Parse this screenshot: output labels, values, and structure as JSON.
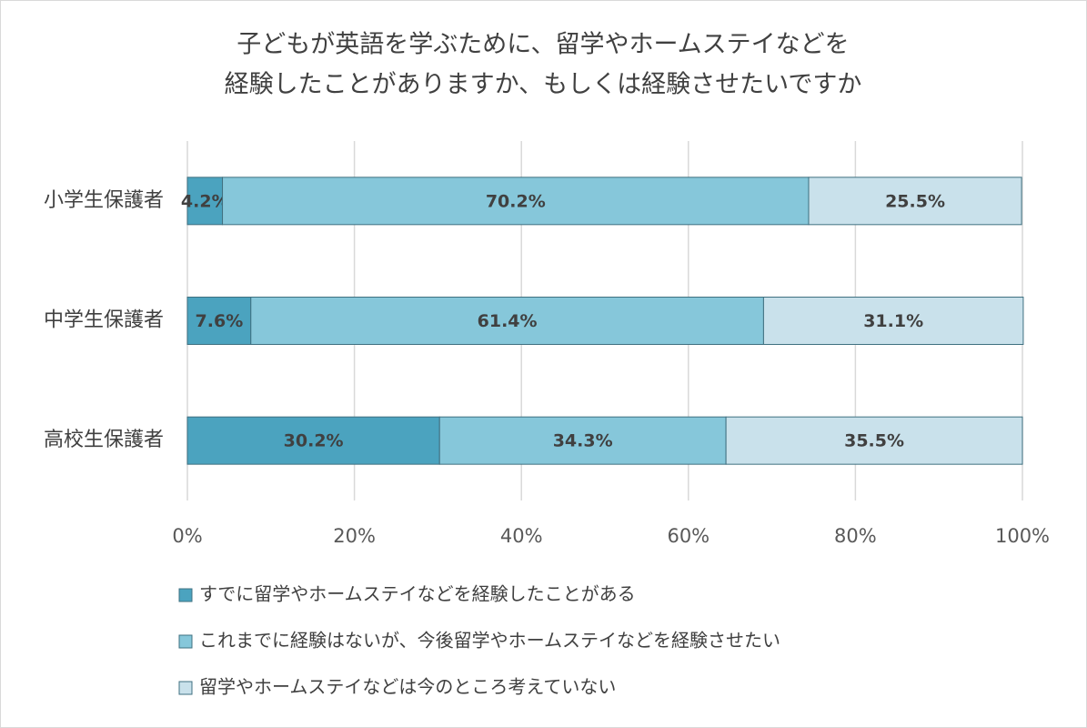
{
  "chart_data": {
    "type": "stacked_bar_horizontal",
    "title": [
      "子どもが英語を学ぶために、留学やホームステイなどを",
      "経験したことがありますか、もしくは経験させたいですか"
    ],
    "categories": [
      "小学生保護者",
      "中学生保護者",
      "高校生保護者"
    ],
    "series": [
      {
        "name": "すでに留学やホームステイなどを経験したことがある",
        "color": "#4ba3bf",
        "values": [
          4.2,
          7.6,
          30.2
        ],
        "value_labels": [
          "4.2%",
          "7.6%",
          "30.2%"
        ]
      },
      {
        "name": "これまでに経験はないが、今後留学やホームステイなどを経験させたい",
        "color": "#86c7da",
        "values": [
          70.2,
          61.4,
          34.3
        ],
        "value_labels": [
          "70.2%",
          "61.4%",
          "34.3%"
        ]
      },
      {
        "name": "留学やホームステイなどは今のところ考えていない",
        "color": "#c9e1eb",
        "values": [
          25.5,
          31.1,
          35.5
        ],
        "value_labels": [
          "25.5%",
          "31.1%",
          "35.5%"
        ]
      }
    ],
    "xlim": [
      0,
      100
    ],
    "xticks": [
      {
        "value": 0,
        "label": "0%"
      },
      {
        "value": 20,
        "label": "20%"
      },
      {
        "value": 40,
        "label": "40%"
      },
      {
        "value": 60,
        "label": "60%"
      },
      {
        "value": 80,
        "label": "80%"
      },
      {
        "value": 100,
        "label": "100%"
      }
    ],
    "grid": true
  }
}
